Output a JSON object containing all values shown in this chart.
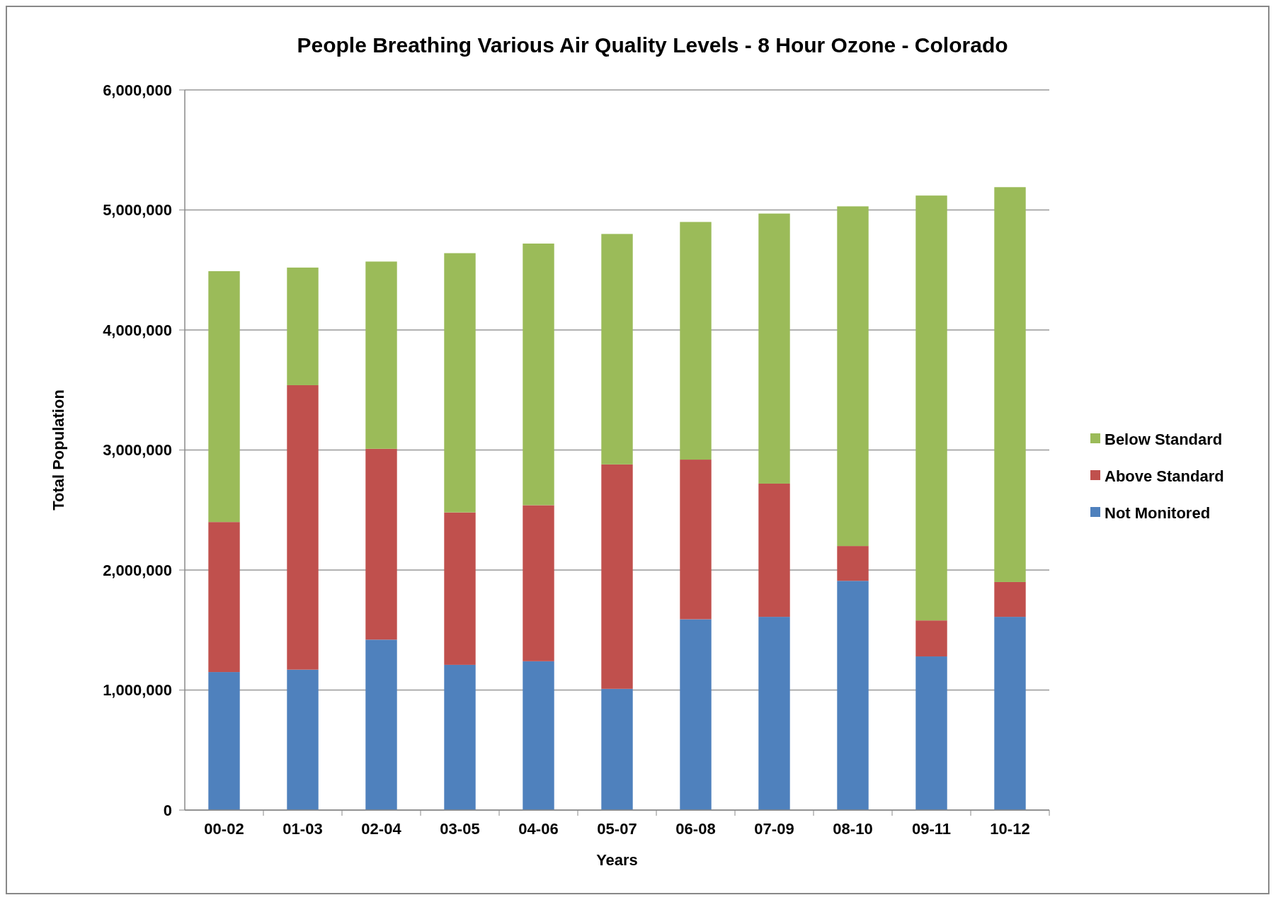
{
  "chart_data": {
    "type": "bar",
    "title": "People Breathing Various Air Quality Levels - 8 Hour Ozone - Colorado",
    "xlabel": "Years",
    "ylabel": "Total Population",
    "categories": [
      "00-02",
      "01-03",
      "02-04",
      "03-05",
      "04-06",
      "05-07",
      "06-08",
      "07-09",
      "08-10",
      "09-11",
      "10-12"
    ],
    "stacked": true,
    "series": [
      {
        "name": "Not Monitored",
        "color": "#4f81bd",
        "values": [
          1150000,
          1170000,
          1420000,
          1210000,
          1240000,
          1010000,
          1590000,
          1610000,
          1910000,
          1280000,
          1610000
        ]
      },
      {
        "name": "Above Standard",
        "color": "#c0504d",
        "values": [
          1250000,
          2370000,
          1590000,
          1270000,
          1300000,
          1870000,
          1330000,
          1110000,
          290000,
          300000,
          290000
        ]
      },
      {
        "name": "Below Standard",
        "color": "#9bbb59",
        "values": [
          2090000,
          980000,
          1560000,
          2160000,
          2180000,
          1920000,
          1980000,
          2250000,
          2830000,
          3540000,
          3290000
        ]
      }
    ],
    "ylim": [
      0,
      6000000
    ],
    "yticks": [
      {
        "value": 0,
        "label": "0"
      },
      {
        "value": 1000000,
        "label": "1,000,000"
      },
      {
        "value": 2000000,
        "label": "2,000,000"
      },
      {
        "value": 3000000,
        "label": "3,000,000"
      },
      {
        "value": 4000000,
        "label": "4,000,000"
      },
      {
        "value": 5000000,
        "label": "5,000,000"
      },
      {
        "value": 6000000,
        "label": "6,000,000"
      }
    ],
    "grid": "y",
    "legend": "right"
  }
}
